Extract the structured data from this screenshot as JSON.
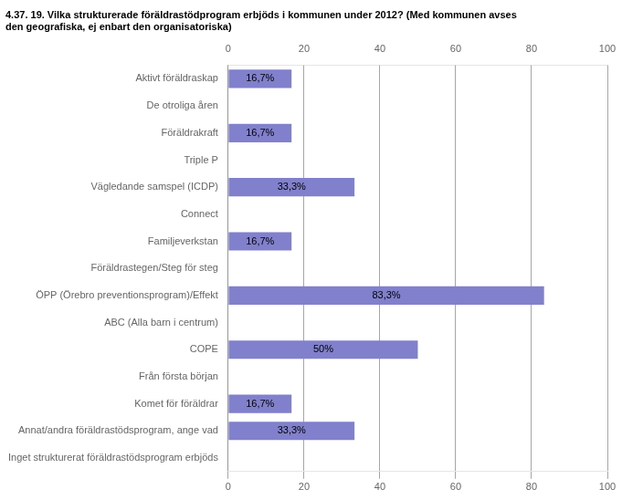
{
  "chart_data": {
    "type": "bar",
    "orientation": "horizontal",
    "title": [
      "4.37. 19. Vilka strukturerade föräldrastödprogram erbjöds i kommunen under 2012? (Med kommunen avses",
      "den geografiska, ej enbart den organisatoriska)"
    ],
    "categories": [
      "Inget strukturerat föräldrastödsprogram erbjöds",
      "Annat/andra föräldrastödsprogram, ange vad",
      "Komet för föräldrar",
      "Från första början",
      "COPE",
      "ABC (Alla barn i centrum)",
      "ÖPP (Örebro preventionsprogram)/Effekt",
      "Föräldrastegen/Steg för steg",
      "Familjeverkstan",
      "Connect",
      "Vägledande samspel (ICDP)",
      "Triple P",
      "Föräldrakraft",
      "De otroliga åren",
      "Aktivt föräldraskap"
    ],
    "values": [
      0,
      33.3,
      16.7,
      0,
      50,
      0,
      83.3,
      0,
      16.7,
      0,
      33.3,
      0,
      16.7,
      0,
      16.7
    ],
    "value_labels": [
      null,
      "33,3%",
      "16,7%",
      null,
      "50%",
      null,
      "83,3%",
      null,
      "16,7%",
      null,
      "33,3%",
      null,
      "16,7%",
      null,
      "16,7%"
    ],
    "data_labels": true,
    "color": "#8080cc",
    "xlim": [
      0,
      100
    ],
    "xticks": [
      0,
      20,
      40,
      60,
      80,
      100
    ],
    "grid": true
  }
}
